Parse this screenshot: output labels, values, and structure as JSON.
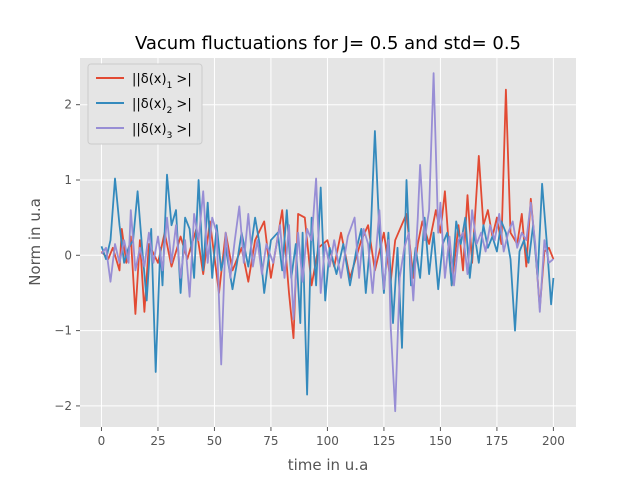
{
  "chart_data": {
    "type": "line",
    "title": "Vacum fluctuations for J= 0.5 and std= 0.5",
    "xlabel": "time in u.a",
    "ylabel": "Norm in u.a",
    "xlim": [
      -9.5,
      210
    ],
    "ylim": [
      -2.28,
      2.62
    ],
    "x_ticks": [
      0,
      25,
      50,
      75,
      100,
      125,
      150,
      175,
      200
    ],
    "x_tick_labels": [
      "0",
      "25",
      "50",
      "75",
      "100",
      "125",
      "150",
      "175",
      "200"
    ],
    "y_ticks": [
      -2,
      -1,
      0,
      1,
      2
    ],
    "y_tick_labels": [
      "−2",
      "−1",
      "0",
      "1",
      "2"
    ],
    "grid": true,
    "legend_position": "top-left",
    "legend_prefix": "||δ(x)",
    "legend_suffix": " >|",
    "style": {
      "axes_bg": "#e5e5e5",
      "grid_color": "#ffffff",
      "text_color": "#555555"
    },
    "series": [
      {
        "name": "||δ(x)₁ >|",
        "subscript": "1",
        "color": "#e24a33",
        "spikes": [
          [
            0,
            0.05
          ],
          [
            3,
            -0.05
          ],
          [
            5,
            0.1
          ],
          [
            8,
            -0.2
          ],
          [
            9,
            0.35
          ],
          [
            11,
            -0.1
          ],
          [
            13,
            0.25
          ],
          [
            15,
            -0.78
          ],
          [
            17,
            0.2
          ],
          [
            19,
            -0.75
          ],
          [
            21,
            0.15
          ],
          [
            25,
            -0.1
          ],
          [
            28,
            0.3
          ],
          [
            31,
            -0.15
          ],
          [
            35,
            0.25
          ],
          [
            38,
            -0.05
          ],
          [
            42,
            0.35
          ],
          [
            45,
            -0.25
          ],
          [
            48,
            0.45
          ],
          [
            52,
            -0.5
          ],
          [
            55,
            0.3
          ],
          [
            58,
            -0.2
          ],
          [
            62,
            0.1
          ],
          [
            65,
            -0.35
          ],
          [
            68,
            0.2
          ],
          [
            72,
            0.45
          ],
          [
            75,
            -0.3
          ],
          [
            80,
            0.6
          ],
          [
            83,
            -0.5
          ],
          [
            85,
            -1.1
          ],
          [
            87,
            0.55
          ],
          [
            90,
            0.5
          ],
          [
            93,
            -0.4
          ],
          [
            96,
            0.1
          ],
          [
            100,
            0.2
          ],
          [
            103,
            -0.15
          ],
          [
            106,
            0.3
          ],
          [
            110,
            -0.3
          ],
          [
            115,
            0.2
          ],
          [
            118,
            0.4
          ],
          [
            121,
            -0.2
          ],
          [
            125,
            0.3
          ],
          [
            128,
            -0.35
          ],
          [
            130,
            0.2
          ],
          [
            135,
            0.55
          ],
          [
            138,
            -0.3
          ],
          [
            140,
            0.15
          ],
          [
            142,
            0.45
          ],
          [
            145,
            0.15
          ],
          [
            148,
            0.6
          ],
          [
            150,
            0.3
          ],
          [
            152,
            0.85
          ],
          [
            155,
            -0.4
          ],
          [
            158,
            0.4
          ],
          [
            160,
            -0.2
          ],
          [
            162,
            0.8
          ],
          [
            164,
            -0.1
          ],
          [
            167,
            1.32
          ],
          [
            169,
            0.4
          ],
          [
            171,
            0.6
          ],
          [
            173,
            0.25
          ],
          [
            175,
            0.5
          ],
          [
            177,
            0.15
          ],
          [
            179,
            2.2
          ],
          [
            181,
            0.3
          ],
          [
            184,
            0.15
          ],
          [
            186,
            0.55
          ],
          [
            188,
            -0.15
          ],
          [
            190,
            0.75
          ],
          [
            192,
            0.1
          ],
          [
            194,
            -0.7
          ],
          [
            196,
            0.05
          ],
          [
            198,
            0.1
          ],
          [
            200,
            -0.05
          ]
        ]
      },
      {
        "name": "||δ(x)₂ >|",
        "subscript": "2",
        "color": "#348abd",
        "spikes": [
          [
            0,
            0.12
          ],
          [
            2,
            -0.05
          ],
          [
            4,
            0.2
          ],
          [
            6,
            1.02
          ],
          [
            8,
            0.4
          ],
          [
            10,
            -0.1
          ],
          [
            12,
            0.1
          ],
          [
            14,
            0.2
          ],
          [
            16,
            0.85
          ],
          [
            18,
            0.1
          ],
          [
            20,
            -0.6
          ],
          [
            22,
            0.35
          ],
          [
            24,
            -1.55
          ],
          [
            26,
            0.1
          ],
          [
            27,
            -0.4
          ],
          [
            29,
            1.07
          ],
          [
            31,
            0.4
          ],
          [
            33,
            0.6
          ],
          [
            35,
            -0.5
          ],
          [
            37,
            0.5
          ],
          [
            39,
            0.35
          ],
          [
            41,
            -0.3
          ],
          [
            43,
            1.0
          ],
          [
            45,
            -0.2
          ],
          [
            47,
            0.7
          ],
          [
            49,
            -0.3
          ],
          [
            51,
            0.4
          ],
          [
            53,
            -0.2
          ],
          [
            55,
            0.1
          ],
          [
            58,
            -0.45
          ],
          [
            60,
            -0.1
          ],
          [
            62,
            0.3
          ],
          [
            65,
            -0.15
          ],
          [
            68,
            0.5
          ],
          [
            70,
            0.15
          ],
          [
            72,
            -0.5
          ],
          [
            75,
            0.2
          ],
          [
            78,
            0.3
          ],
          [
            80,
            -0.2
          ],
          [
            82,
            0.6
          ],
          [
            84,
            -0.3
          ],
          [
            86,
            0.15
          ],
          [
            88,
            -0.9
          ],
          [
            89,
            0.3
          ],
          [
            91,
            -1.85
          ],
          [
            93,
            0.5
          ],
          [
            95,
            -0.4
          ],
          [
            97,
            0.9
          ],
          [
            99,
            -0.6
          ],
          [
            101,
            0.1
          ],
          [
            104,
            -0.25
          ],
          [
            107,
            0.15
          ],
          [
            110,
            -0.4
          ],
          [
            113,
            0.1
          ],
          [
            115,
            0.35
          ],
          [
            117,
            -0.5
          ],
          [
            119,
            0.2
          ],
          [
            121,
            1.65
          ],
          [
            123,
            0.3
          ],
          [
            125,
            -0.5
          ],
          [
            127,
            0.3
          ],
          [
            129,
            -0.9
          ],
          [
            131,
            0.1
          ],
          [
            133,
            -1.23
          ],
          [
            135,
            1.0
          ],
          [
            137,
            -0.4
          ],
          [
            139,
            0.1
          ],
          [
            141,
            -0.3
          ],
          [
            143,
            0.5
          ],
          [
            145,
            -0.25
          ],
          [
            147,
            0.3
          ],
          [
            149,
            -0.45
          ],
          [
            151,
            0.15
          ],
          [
            153,
            0.3
          ],
          [
            155,
            -0.4
          ],
          [
            157,
            0.45
          ],
          [
            159,
            0.15
          ],
          [
            161,
            0.5
          ],
          [
            163,
            -0.3
          ],
          [
            165,
            0.3
          ],
          [
            167,
            -0.1
          ],
          [
            169,
            0.4
          ],
          [
            171,
            0.1
          ],
          [
            173,
            0.25
          ],
          [
            175,
            0.05
          ],
          [
            177,
            0.45
          ],
          [
            179,
            0.3
          ],
          [
            181,
            -0.05
          ],
          [
            183,
            -1.0
          ],
          [
            185,
            0.05
          ],
          [
            187,
            0.2
          ],
          [
            189,
            -0.1
          ],
          [
            191,
            0.4
          ],
          [
            193,
            -0.3
          ],
          [
            195,
            0.95
          ],
          [
            197,
            0.2
          ],
          [
            199,
            -0.65
          ],
          [
            200,
            -0.3
          ]
        ]
      },
      {
        "name": "||δ(x)₃ >|",
        "subscript": "3",
        "color": "#988ed5",
        "spikes": [
          [
            0,
            0.02
          ],
          [
            2,
            0.1
          ],
          [
            4,
            -0.35
          ],
          [
            6,
            0.15
          ],
          [
            8,
            -0.1
          ],
          [
            10,
            0.2
          ],
          [
            12,
            -0.1
          ],
          [
            13,
            0.6
          ],
          [
            15,
            -0.2
          ],
          [
            17,
            0.1
          ],
          [
            19,
            -0.15
          ],
          [
            21,
            0.3
          ],
          [
            23,
            -0.1
          ],
          [
            25,
            0.25
          ],
          [
            27,
            -0.2
          ],
          [
            29,
            0.5
          ],
          [
            31,
            -0.1
          ],
          [
            33,
            0.4
          ],
          [
            35,
            -0.3
          ],
          [
            37,
            0.2
          ],
          [
            39,
            -0.55
          ],
          [
            41,
            0.55
          ],
          [
            43,
            0.2
          ],
          [
            45,
            0.85
          ],
          [
            47,
            -0.1
          ],
          [
            49,
            0.5
          ],
          [
            51,
            0.3
          ],
          [
            53,
            -1.45
          ],
          [
            55,
            0.3
          ],
          [
            57,
            -0.3
          ],
          [
            59,
            0.2
          ],
          [
            61,
            0.65
          ],
          [
            63,
            -0.1
          ],
          [
            65,
            0.55
          ],
          [
            67,
            -0.15
          ],
          [
            69,
            0.2
          ],
          [
            71,
            -0.25
          ],
          [
            73,
            0.15
          ],
          [
            76,
            -0.1
          ],
          [
            79,
            0.4
          ],
          [
            81,
            -0.3
          ],
          [
            83,
            0.4
          ],
          [
            85,
            -0.85
          ],
          [
            87,
            0.3
          ],
          [
            89,
            -0.35
          ],
          [
            91,
            0.35
          ],
          [
            93,
            0.2
          ],
          [
            95,
            1.02
          ],
          [
            97,
            -0.5
          ],
          [
            99,
            0.15
          ],
          [
            101,
            -0.15
          ],
          [
            103,
            0.2
          ],
          [
            106,
            -0.3
          ],
          [
            109,
            0.25
          ],
          [
            112,
            0.5
          ],
          [
            114,
            -0.3
          ],
          [
            116,
            0.35
          ],
          [
            118,
            0.15
          ],
          [
            120,
            -0.5
          ],
          [
            123,
            0.6
          ],
          [
            125,
            -0.45
          ],
          [
            127,
            0.2
          ],
          [
            128,
            -0.95
          ],
          [
            130,
            -2.07
          ],
          [
            132,
            -0.3
          ],
          [
            134,
            0.1
          ],
          [
            136,
            0.3
          ],
          [
            138,
            -0.6
          ],
          [
            140,
            0.5
          ],
          [
            141,
            1.2
          ],
          [
            143,
            0.2
          ],
          [
            145,
            0.6
          ],
          [
            147,
            2.42
          ],
          [
            149,
            0.3
          ],
          [
            150,
            0.7
          ],
          [
            152,
            -0.3
          ],
          [
            154,
            0.25
          ],
          [
            156,
            -0.4
          ],
          [
            158,
            0.2
          ],
          [
            160,
            0.3
          ],
          [
            162,
            -0.25
          ],
          [
            164,
            0.6
          ],
          [
            166,
            0.15
          ],
          [
            168,
            0.3
          ],
          [
            170,
            0.05
          ],
          [
            172,
            0.4
          ],
          [
            174,
            0.2
          ],
          [
            176,
            0.55
          ],
          [
            178,
            0.05
          ],
          [
            180,
            0.3
          ],
          [
            182,
            0.45
          ],
          [
            184,
            0.1
          ],
          [
            186,
            0.3
          ],
          [
            188,
            0.2
          ],
          [
            190,
            0.7
          ],
          [
            192,
            0.15
          ],
          [
            194,
            -0.75
          ],
          [
            196,
            0.2
          ],
          [
            198,
            -0.1
          ],
          [
            200,
            -0.05
          ]
        ]
      }
    ]
  }
}
